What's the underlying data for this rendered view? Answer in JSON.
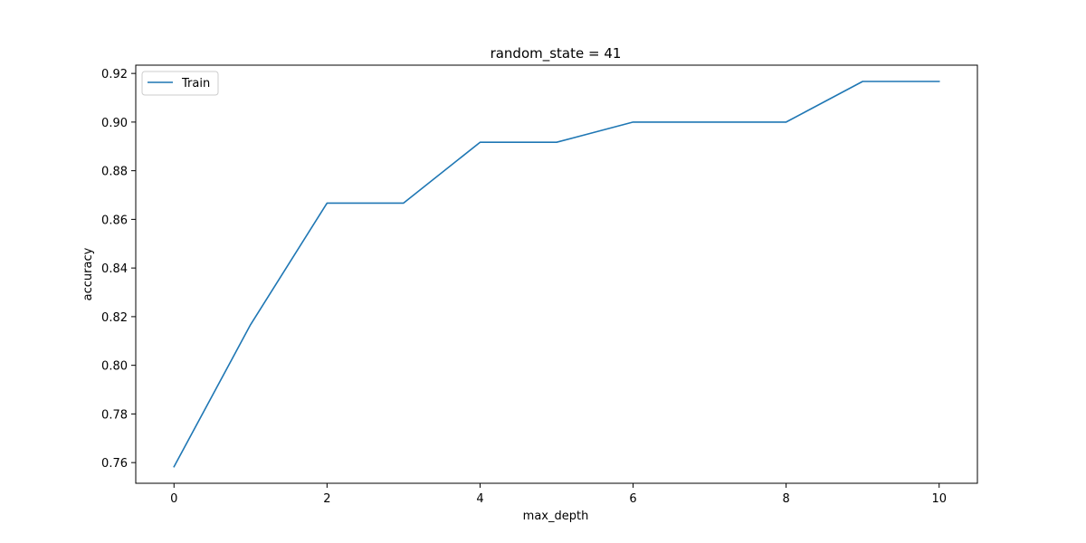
{
  "chart_data": {
    "type": "line",
    "title": "random_state = 41",
    "xlabel": "max_depth",
    "ylabel": "accuracy",
    "xlim": [
      -0.5,
      10.5
    ],
    "ylim": [
      0.7515,
      0.9234
    ],
    "xticks": [
      0,
      2,
      4,
      6,
      8,
      10
    ],
    "xtick_labels": [
      "0",
      "2",
      "4",
      "6",
      "8",
      "10"
    ],
    "yticks": [
      0.76,
      0.78,
      0.8,
      0.82,
      0.84,
      0.86,
      0.88,
      0.9,
      0.92
    ],
    "ytick_labels": [
      "0.76",
      "0.78",
      "0.80",
      "0.82",
      "0.84",
      "0.86",
      "0.88",
      "0.90",
      "0.92"
    ],
    "grid": false,
    "legend_position": "upper-left",
    "series": [
      {
        "name": "Train",
        "color": "#1f77b4",
        "x": [
          0,
          1,
          2,
          3,
          4,
          5,
          6,
          7,
          8,
          9,
          10
        ],
        "values": [
          0.7583,
          0.8167,
          0.8667,
          0.8667,
          0.8917,
          0.8917,
          0.9,
          0.9,
          0.9,
          0.9167,
          0.9167
        ]
      }
    ]
  }
}
